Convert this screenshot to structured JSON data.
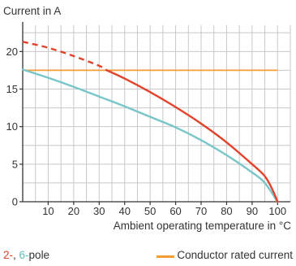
{
  "chart_data": {
    "type": "line",
    "xlabel": "Ambient operating temperature in °C",
    "ylabel": "Current in A",
    "xlim": [
      0,
      105
    ],
    "ylim": [
      0,
      23.5
    ],
    "xticks": [
      10,
      20,
      30,
      40,
      50,
      60,
      70,
      80,
      90,
      100
    ],
    "yticks": [
      0,
      5,
      10,
      15,
      20
    ],
    "grid": true,
    "series": [
      {
        "name": "2-pole",
        "color": "#e2432b",
        "dashed_x": [
          0,
          10,
          20,
          30,
          33
        ],
        "dashed_y": [
          21.3,
          20.5,
          19.4,
          18.1,
          17.5
        ],
        "x": [
          33,
          40,
          50,
          60,
          70,
          80,
          90,
          95,
          98,
          100
        ],
        "y": [
          17.5,
          16.4,
          14.6,
          12.6,
          10.4,
          7.9,
          5.0,
          3.4,
          1.6,
          0
        ]
      },
      {
        "name": "6-pole",
        "color": "#78c6c9",
        "x": [
          0,
          10,
          20,
          30,
          40,
          50,
          60,
          70,
          80,
          90,
          95,
          100
        ],
        "y": [
          17.6,
          16.5,
          15.3,
          14.0,
          12.7,
          11.3,
          9.9,
          8.2,
          6.2,
          3.9,
          2.5,
          0
        ]
      }
    ],
    "reference": {
      "name": "Conductor rated current",
      "color": "#f39c34",
      "value": 17.5,
      "x_range": [
        0,
        100
      ]
    }
  },
  "labels": {
    "ylabel": "Current in A",
    "xlabel": "Ambient operating temperature in °C",
    "legend_red": "2-",
    "legend_sep": ", ",
    "legend_teal": "6-",
    "legend_suffix": "pole",
    "legend_ref": "Conductor rated current"
  }
}
